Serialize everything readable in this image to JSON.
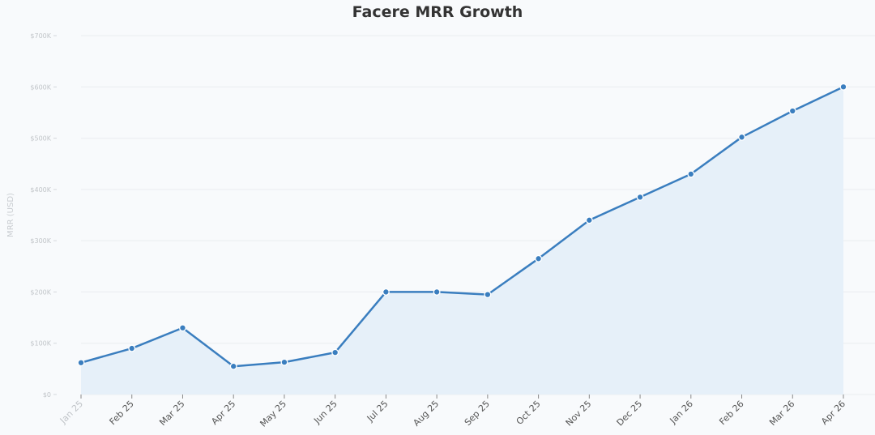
{
  "chart_data": {
    "type": "area",
    "title": "Facere MRR Growth",
    "xlabel": "",
    "ylabel": "MRR (USD)",
    "categories": [
      "Jan 25",
      "Feb 25",
      "Mar 25",
      "Apr 25",
      "May 25",
      "Jun 25",
      "Jul 25",
      "Aug 25",
      "Sep 25",
      "Oct 25",
      "Nov 25",
      "Dec 25",
      "Jan 26",
      "Feb 26",
      "Mar 26",
      "Apr 26"
    ],
    "series": [
      {
        "values": [
          62,
          90,
          130,
          55,
          63,
          82,
          200,
          200,
          195,
          265,
          340,
          385,
          430,
          502,
          553,
          600
        ]
      }
    ],
    "y_unit": "thousand USD",
    "ylim": [
      0,
      700
    ],
    "yticks": [
      0,
      100,
      200,
      300,
      400,
      500,
      600,
      700
    ],
    "ytick_labels": [
      "$0",
      "$100K",
      "$200K",
      "$300K",
      "$400K",
      "$500K",
      "$600K",
      "$700K"
    ],
    "grid": true,
    "legend": "none",
    "colors": {
      "line": "#3a7ebf",
      "fill": "#e6f0f9",
      "grid": "#eaedf0",
      "background": "#f8fafc"
    }
  }
}
